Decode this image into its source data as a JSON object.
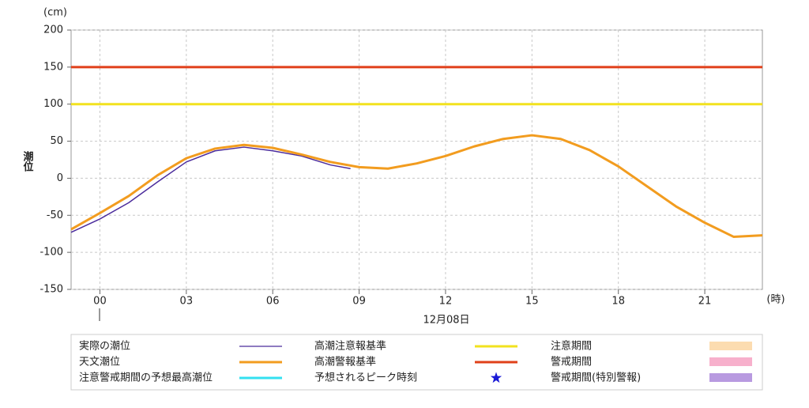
{
  "chart_data": {
    "type": "line",
    "y_unit": "(cm)",
    "x_unit": "(時)",
    "y_label": "潮位",
    "date_label": "12月08日",
    "xlim": [
      -1,
      23
    ],
    "xticks": [
      {
        "value": 0,
        "label": "00"
      },
      {
        "value": 3,
        "label": "03"
      },
      {
        "value": 6,
        "label": "06"
      },
      {
        "value": 9,
        "label": "09"
      },
      12,
      15,
      18,
      21
    ],
    "ylim": [
      -150,
      200
    ],
    "yticks": [
      -150,
      -100,
      -50,
      0,
      50,
      100,
      150,
      200
    ],
    "grid": true,
    "series": [
      {
        "name": "実際の潮位",
        "color": "#4b2c9c",
        "symbol": "line",
        "x": [
          -1,
          0,
          1,
          2,
          3,
          4,
          5,
          6,
          7,
          8,
          8.7
        ],
        "values": [
          -73,
          -55,
          -33,
          -5,
          22,
          37,
          42,
          37,
          30,
          18,
          13
        ]
      },
      {
        "name": "天文潮位",
        "color": "#f29c1f",
        "symbol": "line",
        "x": [
          -1,
          0,
          1,
          2,
          3,
          4,
          5,
          6,
          7,
          8,
          9,
          10,
          11,
          12,
          13,
          14,
          15,
          16,
          17,
          18,
          19,
          20,
          21,
          22,
          23
        ],
        "values": [
          -69,
          -47,
          -24,
          4,
          27,
          40,
          45,
          41,
          32,
          22,
          15,
          13,
          20,
          30,
          43,
          53,
          58,
          53,
          38,
          16,
          -11,
          -38,
          -60,
          -79,
          -77
        ]
      },
      {
        "name": "注意警戒期間の予想最高潮位",
        "color": "#33e0f0",
        "symbol": "line"
      },
      {
        "name": "高潮注意報基準",
        "color": "#f2e21f",
        "symbol": "line",
        "level": 100
      },
      {
        "name": "高潮警報基準",
        "color": "#e0401a",
        "symbol": "line",
        "level": 150
      },
      {
        "name": "予想されるピーク時刻",
        "color": "#1a1ad6",
        "symbol": "star"
      },
      {
        "name": "注意期間",
        "color": "#fcdcb0",
        "symbol": "rect"
      },
      {
        "name": "警戒期間",
        "color": "#f7b0cc",
        "symbol": "rect"
      },
      {
        "name": "警戒期間(特別警報)",
        "color": "#b89ae0",
        "symbol": "rect"
      }
    ]
  }
}
